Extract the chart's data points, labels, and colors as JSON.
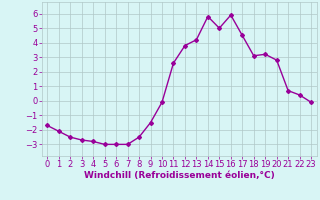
{
  "x": [
    0,
    1,
    2,
    3,
    4,
    5,
    6,
    7,
    8,
    9,
    10,
    11,
    12,
    13,
    14,
    15,
    16,
    17,
    18,
    19,
    20,
    21,
    22,
    23
  ],
  "y": [
    -1.7,
    -2.1,
    -2.5,
    -2.7,
    -2.8,
    -3.0,
    -3.0,
    -3.0,
    -2.5,
    -1.5,
    -0.1,
    2.6,
    3.8,
    4.2,
    5.8,
    5.0,
    5.9,
    4.5,
    3.1,
    3.2,
    2.8,
    0.7,
    0.4,
    -0.1
  ],
  "line_color": "#990099",
  "marker": "D",
  "marker_size": 2,
  "linewidth": 1.0,
  "bg_color": "#d8f5f5",
  "grid_color": "#b0c8c8",
  "xlabel": "Windchill (Refroidissement éolien,°C)",
  "xlabel_color": "#990099",
  "xlabel_fontsize": 6.5,
  "tick_color": "#990099",
  "tick_fontsize": 6,
  "ylim": [
    -3.8,
    6.8
  ],
  "yticks": [
    -3,
    -2,
    -1,
    0,
    1,
    2,
    3,
    4,
    5,
    6
  ],
  "xlim": [
    -0.5,
    23.5
  ],
  "xticks": [
    0,
    1,
    2,
    3,
    4,
    5,
    6,
    7,
    8,
    9,
    10,
    11,
    12,
    13,
    14,
    15,
    16,
    17,
    18,
    19,
    20,
    21,
    22,
    23
  ]
}
